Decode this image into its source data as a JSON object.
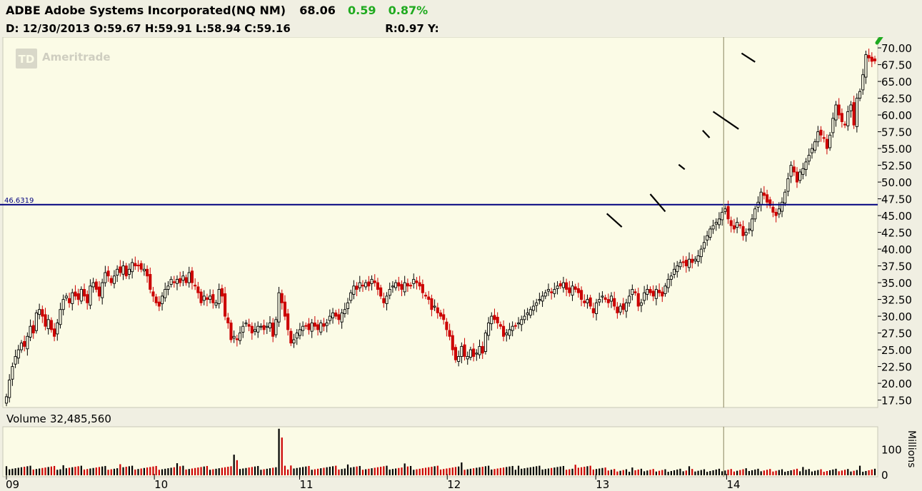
{
  "header": {
    "symbol_name": "ADBE Adobe Systems Incorporated(NQ NM)",
    "last": "68.06",
    "change": "0.59",
    "change_pct": "0.87%",
    "date_label": "D:",
    "date": "12/30/2013",
    "open": "O:59.67",
    "high": "H:59.91",
    "low": "L:58.94",
    "close": "C:59.16",
    "r_label": "R:0.97",
    "y_label": "Y:"
  },
  "watermark": "Ameritrade",
  "watermark_logo": "TD",
  "colors": {
    "up_candle": "#000000",
    "down_candle": "#cc0000",
    "background": "#fbfbe6",
    "level_line": "#00007f",
    "arrow": "#1faa1f",
    "positive_text": "#1faa1f"
  },
  "icons": [
    "green-up-arrow-icon",
    "td-logo-icon"
  ],
  "chart_data": [
    {
      "type": "candlestick",
      "title": "ADBE Adobe Systems Incorporated(NQ NM)",
      "ylim": [
        16.5,
        71.5
      ],
      "y_ticks": [
        "70.00",
        "67.50",
        "65.00",
        "62.50",
        "60.00",
        "57.50",
        "55.00",
        "52.50",
        "50.00",
        "47.50",
        "45.00",
        "42.50",
        "40.00",
        "37.50",
        "35.00",
        "32.50",
        "30.00",
        "27.50",
        "25.00",
        "22.50",
        "20.00",
        "17.50"
      ],
      "y_tick_values": [
        70,
        67.5,
        65,
        62.5,
        60,
        57.5,
        55,
        52.5,
        50,
        47.5,
        45,
        42.5,
        40,
        37.5,
        35,
        32.5,
        30,
        27.5,
        25,
        22.5,
        20,
        17.5
      ],
      "x_ticks": [
        "09",
        "10",
        "11",
        "12",
        "13",
        "14"
      ],
      "x_tick_positions": [
        0,
        49.4,
        97.9,
        147.2,
        196.8,
        240.5
      ],
      "horizontal_line": {
        "value": 46.6319,
        "label": "46.6319"
      },
      "vertical_marker_index": 239.5,
      "trend_segments": [
        {
          "from": [
            200.5,
            45.3
          ],
          "to": [
            205.5,
            43.3
          ]
        },
        {
          "from": [
            215,
            48.2
          ],
          "to": [
            220,
            45.6
          ]
        },
        {
          "from": [
            224.5,
            52.6
          ],
          "to": [
            226.5,
            51.9
          ]
        },
        {
          "from": [
            232.5,
            57.7
          ],
          "to": [
            234.8,
            56.6
          ]
        },
        {
          "from": [
            236,
            60.5
          ],
          "to": [
            244.5,
            57.9
          ]
        },
        {
          "from": [
            245.5,
            69.2
          ],
          "to": [
            250,
            67.9
          ]
        }
      ],
      "closes": [
        18.0,
        20.5,
        22.5,
        24.0,
        25.0,
        26.0,
        25.5,
        27.0,
        28.5,
        27.5,
        30.5,
        31.0,
        30.0,
        28.5,
        29.5,
        28.0,
        27.0,
        29.0,
        31.0,
        32.5,
        33.0,
        32.0,
        33.5,
        33.0,
        32.5,
        34.0,
        33.0,
        32.0,
        34.5,
        35.0,
        34.0,
        33.0,
        35.0,
        36.5,
        36.0,
        35.0,
        36.0,
        37.0,
        36.5,
        37.5,
        36.0,
        37.0,
        38.0,
        37.5,
        37.5,
        37.0,
        37.0,
        36.0,
        34.0,
        33.0,
        32.0,
        31.5,
        33.0,
        34.0,
        34.5,
        35.5,
        35.0,
        35.5,
        35.0,
        36.0,
        35.0,
        36.5,
        35.0,
        34.5,
        33.5,
        32.0,
        33.0,
        32.5,
        33.0,
        32.0,
        32.0,
        34.0,
        33.0,
        30.0,
        29.0,
        26.5,
        27.0,
        26.5,
        27.5,
        28.5,
        29.0,
        28.5,
        27.5,
        28.0,
        28.5,
        28.5,
        28.0,
        28.5,
        29.0,
        27.0,
        29.5,
        33.5,
        32.0,
        30.0,
        28.0,
        26.0,
        26.5,
        27.5,
        28.0,
        28.5,
        28.5,
        28.0,
        29.0,
        28.5,
        28.0,
        29.0,
        28.5,
        29.0,
        30.0,
        30.5,
        30.0,
        29.5,
        30.5,
        31.0,
        32.0,
        33.5,
        34.5,
        34.0,
        35.0,
        34.5,
        35.0,
        34.5,
        35.5,
        35.0,
        34.0,
        33.0,
        32.0,
        33.0,
        34.0,
        34.5,
        35.0,
        34.5,
        34.0,
        35.0,
        34.5,
        34.5,
        35.5,
        35.0,
        34.5,
        33.5,
        33.0,
        32.5,
        31.0,
        31.5,
        30.5,
        30.0,
        29.5,
        28.0,
        27.0,
        25.0,
        23.5,
        24.0,
        25.5,
        24.0,
        24.0,
        25.0,
        24.0,
        24.5,
        25.5,
        24.5,
        27.5,
        29.0,
        30.0,
        29.5,
        29.0,
        28.5,
        27.0,
        27.5,
        28.0,
        28.5,
        28.5,
        29.0,
        29.5,
        30.0,
        30.5,
        31.0,
        31.5,
        32.0,
        32.5,
        33.0,
        33.5,
        34.0,
        33.5,
        34.0,
        34.5,
        34.5,
        35.0,
        34.0,
        33.5,
        34.5,
        34.0,
        33.5,
        32.5,
        32.0,
        32.5,
        31.5,
        30.5,
        32.0,
        32.5,
        33.0,
        32.5,
        32.0,
        33.0,
        31.5,
        30.5,
        31.5,
        31.0,
        32.0,
        33.0,
        34.0,
        33.5,
        31.5,
        32.0,
        33.5,
        34.0,
        33.5,
        33.0,
        34.0,
        33.5,
        33.0,
        34.5,
        35.5,
        36.0,
        37.0,
        37.5,
        38.0,
        38.0,
        37.5,
        38.5,
        38.0,
        38.5,
        39.0,
        40.0,
        41.0,
        42.0,
        43.0,
        43.5,
        44.0,
        44.5,
        45.5,
        46.0,
        44.5,
        43.5,
        43.0,
        44.0,
        43.5,
        42.0,
        42.5,
        43.0,
        44.5,
        46.0,
        47.0,
        48.5,
        48.0,
        47.0,
        46.5,
        45.5,
        45.0,
        46.0,
        47.0,
        48.5,
        50.5,
        52.5,
        51.5,
        50.0,
        51.5,
        52.0,
        53.0,
        54.0,
        55.0,
        56.0,
        57.5,
        57.0,
        56.5,
        55.0,
        57.0,
        59.5,
        61.5,
        60.0,
        59.0,
        58.5,
        60.5,
        61.5,
        58.5,
        62.5,
        63.5,
        66.0,
        69.0,
        68.5,
        68.0,
        68.06
      ]
    },
    {
      "type": "bar",
      "title": "Volume",
      "value_label": "32,485,560",
      "ylabel": "Millions",
      "y_ticks": [
        "100",
        "0"
      ],
      "y_tick_values": [
        100,
        0
      ],
      "ylim": [
        0,
        190
      ]
    }
  ]
}
